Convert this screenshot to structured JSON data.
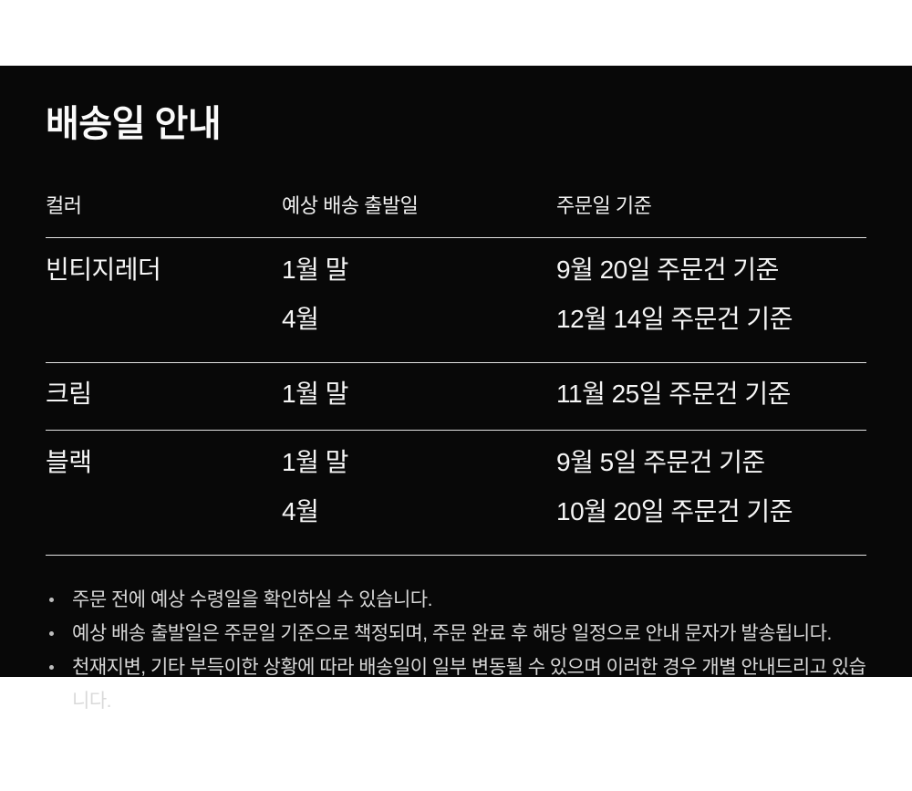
{
  "title": "배송일 안내",
  "table": {
    "headers": {
      "color": "컬러",
      "ship_date": "예상 배송 출발일",
      "order_basis": "주문일 기준"
    },
    "rows": [
      {
        "color": "빈티지레더",
        "ship": [
          "1월 말",
          "4월"
        ],
        "order": [
          "9월 20일 주문건 기준",
          "12월 14일 주문건 기준"
        ]
      },
      {
        "color": "크림",
        "ship": [
          "1월 말"
        ],
        "order": [
          "11월 25일 주문건 기준"
        ]
      },
      {
        "color": "블랙",
        "ship": [
          "1월 말",
          "4월"
        ],
        "order": [
          "9월 5일 주문건 기준",
          "10월 20일 주문건 기준"
        ]
      }
    ]
  },
  "notes": [
    "주문 전에 예상 수령일을 확인하실 수 있습니다.",
    "예상 배송 출발일은 주문일 기준으로 책정되며, 주문 완료 후 해당 일정으로 안내 문자가 발송됩니다.",
    "천재지변, 기타 부득이한 상황에 따라 배송일이 일부 변동될 수 있으며 이러한 경우 개별 안내드리고 있습니다."
  ],
  "colors": {
    "page_bg": "#ffffff",
    "panel_bg": "#080808",
    "text": "#f5f5f5",
    "note_text": "#d9d9d9",
    "divider": "#e3e3e3"
  }
}
